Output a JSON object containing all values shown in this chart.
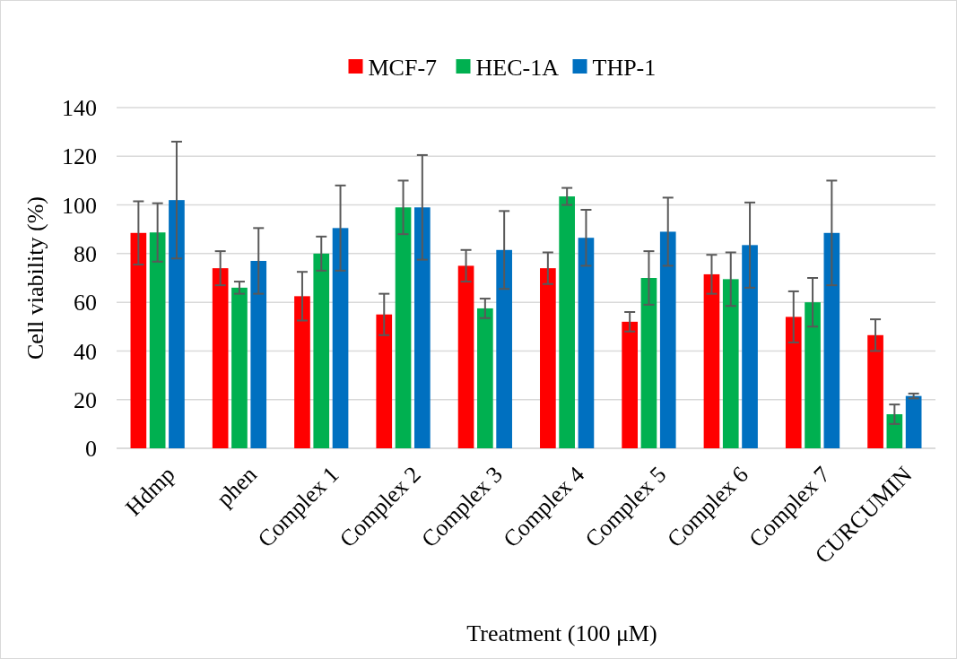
{
  "chart_data": {
    "type": "bar",
    "xlabel": "Treatment (100 μM)",
    "ylabel": "Cell viability (%)",
    "categories": [
      "Hdmp",
      "phen",
      "Complex 1",
      "Complex 2",
      "Complex 3",
      "Complex 4",
      "Complex 5",
      "Complex 6",
      "Complex 7",
      "CURCUMIN"
    ],
    "series": [
      {
        "name": "MCF-7",
        "color": "#ff0000",
        "values": [
          88.5,
          74,
          62.5,
          55,
          75,
          74,
          52,
          71.5,
          54,
          46.5
        ],
        "errors": [
          13,
          7,
          10,
          8.5,
          6.5,
          6.5,
          4,
          8,
          10.5,
          6.5
        ]
      },
      {
        "name": "HEC-1A",
        "color": "#00b050",
        "values": [
          88.7,
          66,
          80,
          99,
          57.5,
          103.5,
          70,
          69.5,
          60,
          14
        ],
        "errors": [
          12,
          2.5,
          7,
          11,
          4,
          3.5,
          11,
          11,
          10,
          4
        ]
      },
      {
        "name": "THP-1",
        "color": "#0070c0",
        "values": [
          102,
          77,
          90.5,
          99,
          81.5,
          86.5,
          89,
          83.5,
          88.5,
          21.5
        ],
        "errors": [
          24,
          13.5,
          17.5,
          21.5,
          16,
          11.5,
          14,
          17.5,
          21.5,
          1
        ]
      }
    ],
    "ylim": [
      0,
      140
    ],
    "yticks": [
      0,
      20,
      40,
      60,
      80,
      100,
      120,
      140
    ],
    "grid": "y",
    "legend": "top"
  }
}
